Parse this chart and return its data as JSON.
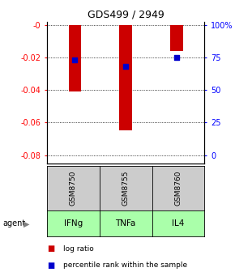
{
  "title": "GDS499 / 2949",
  "categories": [
    "IFNg",
    "TNFa",
    "IL4"
  ],
  "gsm_labels": [
    "GSM8750",
    "GSM8755",
    "GSM8760"
  ],
  "log_ratios": [
    -0.041,
    -0.065,
    -0.016
  ],
  "percentile_ranks": [
    0.73,
    0.68,
    0.75
  ],
  "bar_color": "#cc0000",
  "dot_color": "#0000cc",
  "left_yticks": [
    0,
    -0.02,
    -0.04,
    -0.06,
    -0.08
  ],
  "left_yticklabels": [
    "-0",
    "-0.02",
    "-0.04",
    "-0.06",
    "-0.08"
  ],
  "right_yticklabels": [
    "0",
    "25",
    "50",
    "75",
    "100%"
  ],
  "agent_bg": "#aaffaa",
  "gsm_bg": "#cccccc",
  "legend_bar_label": "log ratio",
  "legend_dot_label": "percentile rank within the sample",
  "bar_width": 0.25
}
